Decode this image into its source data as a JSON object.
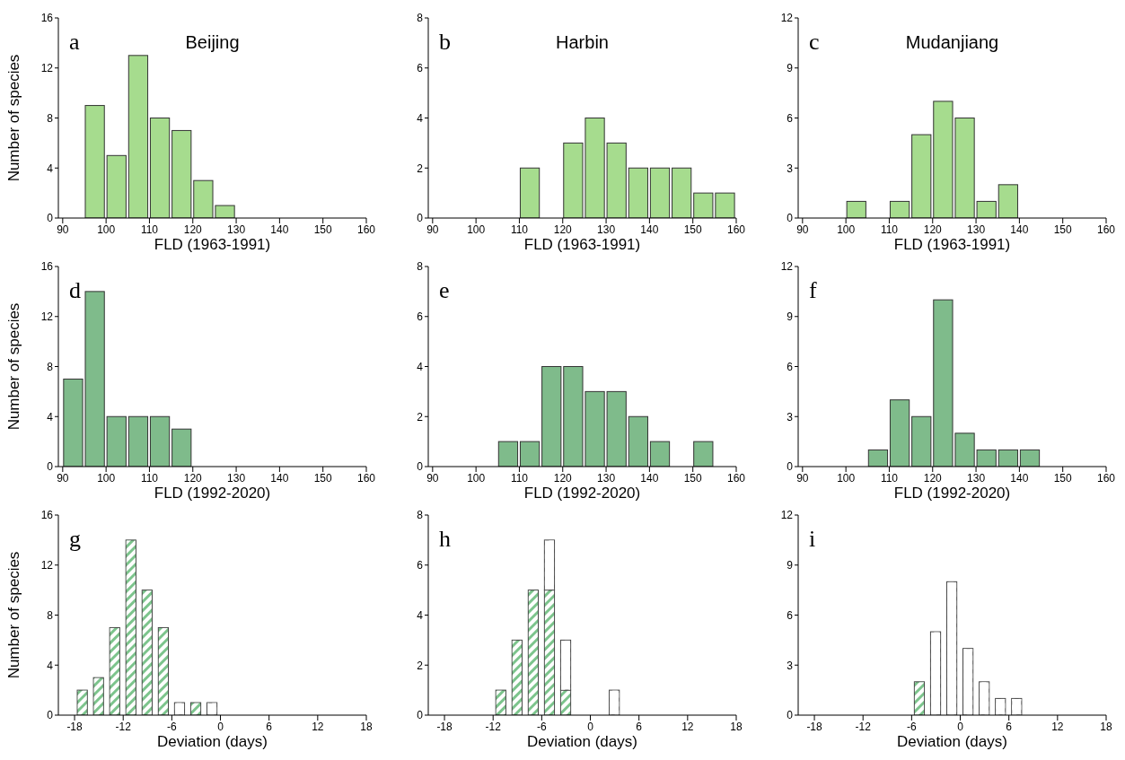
{
  "chart_data": [
    {
      "type": "histogram",
      "title": "Beijing",
      "xlabel": "FLD (1963-1991)",
      "ylabel": "Number of species",
      "annotations": [
        "a"
      ],
      "bins": [
        95,
        100,
        105,
        110,
        115,
        120,
        125,
        130
      ],
      "values": [
        9,
        5,
        13,
        8,
        7,
        3,
        1
      ],
      "color": "#a6dc8e",
      "xlim": [
        89,
        160
      ],
      "xticks": [
        90,
        100,
        110,
        120,
        130,
        140,
        150,
        160
      ],
      "ylim": [
        0,
        16
      ],
      "yticks": [
        0,
        4,
        8,
        12,
        16
      ]
    },
    {
      "type": "histogram",
      "title": "Harbin",
      "xlabel": "FLD (1963-1991)",
      "annotations": [
        "b"
      ],
      "bins": [
        110,
        115,
        120,
        125,
        130,
        135,
        140,
        145,
        150,
        155,
        160
      ],
      "values": [
        2,
        0,
        3,
        4,
        3,
        2,
        2,
        2,
        1,
        1
      ],
      "color": "#a6dc8e",
      "xlim": [
        89,
        160
      ],
      "xticks": [
        90,
        100,
        110,
        120,
        130,
        140,
        150,
        160
      ],
      "ylim": [
        0,
        8
      ],
      "yticks": [
        0,
        2,
        4,
        6,
        8
      ]
    },
    {
      "type": "histogram",
      "title": "Mudanjiang",
      "xlabel": "FLD (1963-1991)",
      "annotations": [
        "c"
      ],
      "bins": [
        100,
        105,
        110,
        115,
        120,
        125,
        130,
        135,
        140
      ],
      "values": [
        1,
        0,
        1,
        5,
        7,
        6,
        1,
        2
      ],
      "color": "#a6dc8e",
      "xlim": [
        89,
        160
      ],
      "xticks": [
        90,
        100,
        110,
        120,
        130,
        140,
        150,
        160
      ],
      "ylim": [
        0,
        12
      ],
      "yticks": [
        0,
        3,
        6,
        9,
        12
      ]
    },
    {
      "type": "histogram",
      "xlabel": "FLD (1992-2020)",
      "ylabel": "Number of species",
      "annotations": [
        "d"
      ],
      "bins": [
        90,
        95,
        100,
        105,
        110,
        115,
        120
      ],
      "values": [
        7,
        14,
        4,
        4,
        4,
        3
      ],
      "color": "#7fbb8b",
      "xlim": [
        89,
        160
      ],
      "xticks": [
        90,
        100,
        110,
        120,
        130,
        140,
        150,
        160
      ],
      "ylim": [
        0,
        16
      ],
      "yticks": [
        0,
        4,
        8,
        12,
        16
      ]
    },
    {
      "type": "histogram",
      "xlabel": "FLD (1992-2020)",
      "annotations": [
        "e"
      ],
      "bins": [
        105,
        110,
        115,
        120,
        125,
        130,
        135,
        140,
        145,
        150,
        155
      ],
      "values": [
        1,
        1,
        4,
        4,
        3,
        3,
        2,
        1,
        0,
        1
      ],
      "color": "#7fbb8b",
      "xlim": [
        89,
        160
      ],
      "xticks": [
        90,
        100,
        110,
        120,
        130,
        140,
        150,
        160
      ],
      "ylim": [
        0,
        8
      ],
      "yticks": [
        0,
        2,
        4,
        6,
        8
      ]
    },
    {
      "type": "histogram",
      "xlabel": "FLD (1992-2020)",
      "annotations": [
        "f"
      ],
      "bins": [
        105,
        110,
        115,
        120,
        125,
        130,
        135,
        140,
        145
      ],
      "values": [
        1,
        4,
        3,
        10,
        2,
        1,
        1,
        1
      ],
      "color": "#7fbb8b",
      "xlim": [
        89,
        160
      ],
      "xticks": [
        90,
        100,
        110,
        120,
        130,
        140,
        150,
        160
      ],
      "ylim": [
        0,
        12
      ],
      "yticks": [
        0,
        3,
        6,
        9,
        12
      ]
    },
    {
      "type": "bar",
      "stacked": true,
      "xlabel": "Deviation (days)",
      "ylabel": "Number of species",
      "annotations": [
        "g"
      ],
      "x": [
        -17,
        -15,
        -13,
        -11,
        -9,
        -7,
        -5,
        -3,
        -1
      ],
      "series": [
        {
          "color": "#7cc48c",
          "values": [
            2,
            3,
            7,
            14,
            10,
            7,
            0,
            1,
            0
          ]
        },
        {
          "color": "#ffffff",
          "values": [
            0,
            0,
            0,
            0,
            0,
            0,
            1,
            0,
            1
          ]
        }
      ],
      "xlim": [
        -20,
        18
      ],
      "xticks": [
        -18,
        -12,
        -6,
        0,
        6,
        12,
        18
      ],
      "ylim": [
        0,
        16
      ],
      "yticks": [
        0,
        4,
        8,
        12,
        16
      ]
    },
    {
      "type": "bar",
      "stacked": true,
      "xlabel": "Deviation (days)",
      "annotations": [
        "h"
      ],
      "x": [
        -11,
        -9,
        -7,
        -5,
        -3,
        -1,
        1,
        3
      ],
      "series": [
        {
          "color": "#7cc48c",
          "values": [
            1,
            3,
            5,
            5,
            1,
            0,
            0,
            0
          ]
        },
        {
          "color": "#ffffff",
          "values": [
            0,
            0,
            0,
            2,
            2,
            0,
            0,
            1
          ]
        }
      ],
      "xlim": [
        -20,
        18
      ],
      "xticks": [
        -18,
        -12,
        -6,
        0,
        6,
        12,
        18
      ],
      "ylim": [
        0,
        8
      ],
      "yticks": [
        0,
        2,
        4,
        6,
        8
      ]
    },
    {
      "type": "bar",
      "stacked": true,
      "xlabel": "Deviation (days)",
      "annotations": [
        "i"
      ],
      "x": [
        -5,
        -3,
        -1,
        1,
        3,
        5,
        7
      ],
      "series": [
        {
          "color": "#7cc48c",
          "values": [
            2,
            0,
            0,
            0,
            0,
            0,
            0
          ]
        },
        {
          "color": "#ffffff",
          "values": [
            0,
            5,
            8,
            4,
            2,
            1,
            1
          ]
        }
      ],
      "xlim": [
        -20,
        18
      ],
      "xticks": [
        -18,
        -12,
        -6,
        0,
        6,
        12,
        18
      ],
      "ylim": [
        0,
        12
      ],
      "yticks": [
        0,
        3,
        6,
        9,
        12
      ]
    }
  ]
}
